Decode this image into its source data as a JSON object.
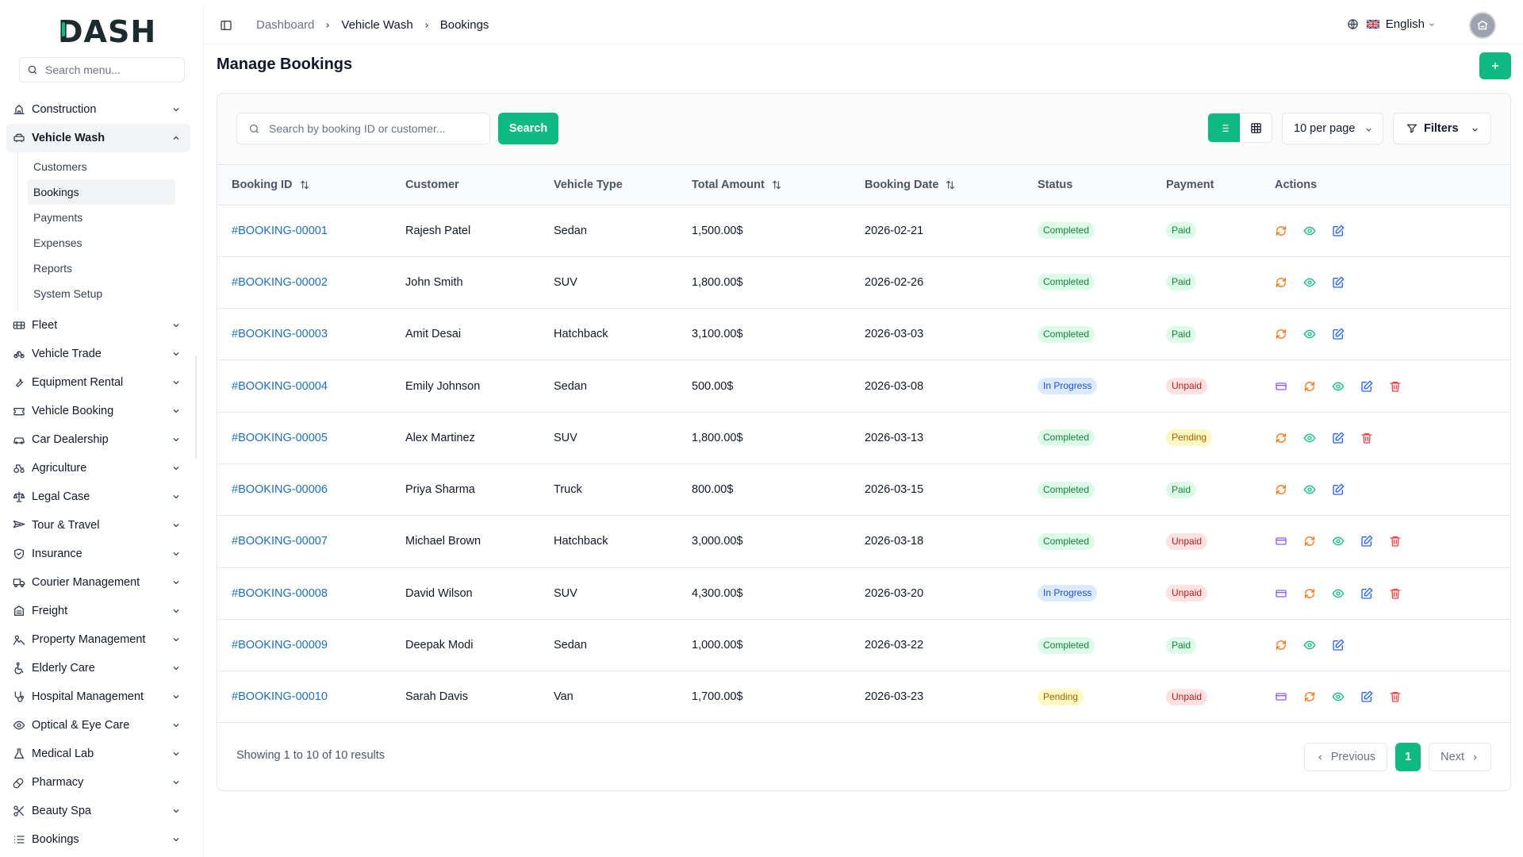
{
  "brand": {
    "logo_text": "DASH",
    "accent": "#10b981"
  },
  "sidebar": {
    "search_placeholder": "Search menu...",
    "items": [
      {
        "label": "Construction",
        "icon": "construction-icon"
      },
      {
        "label": "Vehicle Wash",
        "icon": "car-wash-icon",
        "open": true,
        "children": [
          {
            "label": "Customers"
          },
          {
            "label": "Bookings",
            "active": true
          },
          {
            "label": "Payments"
          },
          {
            "label": "Expenses"
          },
          {
            "label": "Reports"
          },
          {
            "label": "System Setup"
          }
        ]
      },
      {
        "label": "Fleet",
        "icon": "fleet-icon"
      },
      {
        "label": "Vehicle Trade",
        "icon": "bike-icon"
      },
      {
        "label": "Equipment Rental",
        "icon": "wrench-icon"
      },
      {
        "label": "Vehicle Booking",
        "icon": "ticket-icon"
      },
      {
        "label": "Car Dealership",
        "icon": "car-icon"
      },
      {
        "label": "Agriculture",
        "icon": "tractor-icon"
      },
      {
        "label": "Legal Case",
        "icon": "scale-icon"
      },
      {
        "label": "Tour & Travel",
        "icon": "plane-icon"
      },
      {
        "label": "Insurance",
        "icon": "shield-icon"
      },
      {
        "label": "Courier Management",
        "icon": "truck-icon"
      },
      {
        "label": "Freight",
        "icon": "container-icon"
      },
      {
        "label": "Property Management",
        "icon": "property-icon"
      },
      {
        "label": "Elderly Care",
        "icon": "wheelchair-icon"
      },
      {
        "label": "Hospital Management",
        "icon": "stethoscope-icon"
      },
      {
        "label": "Optical & Eye Care",
        "icon": "eye-icon"
      },
      {
        "label": "Medical Lab",
        "icon": "flask-icon"
      },
      {
        "label": "Pharmacy",
        "icon": "pill-icon"
      },
      {
        "label": "Beauty Spa",
        "icon": "scissors-icon"
      },
      {
        "label": "Bookings",
        "icon": "list-icon"
      }
    ]
  },
  "topbar": {
    "breadcrumb": [
      "Dashboard",
      "Vehicle Wash",
      "Bookings"
    ],
    "language": "English"
  },
  "page": {
    "title": "Manage Bookings",
    "add_label": "+"
  },
  "toolbar": {
    "search_placeholder": "Search by booking ID or customer...",
    "search_button": "Search",
    "per_page": "10 per page",
    "filters": "Filters"
  },
  "table": {
    "columns": [
      "Booking ID",
      "Customer",
      "Vehicle Type",
      "Total Amount",
      "Booking Date",
      "Status",
      "Payment",
      "Actions"
    ],
    "rows": [
      {
        "id": "#BOOKING-00001",
        "customer": "Rajesh Patel",
        "vehicle": "Sedan",
        "amount": "1,500.00$",
        "date": "2026-02-21",
        "status": "Completed",
        "payment": "Paid",
        "actions": [
          "refresh",
          "view",
          "edit"
        ]
      },
      {
        "id": "#BOOKING-00002",
        "customer": "John Smith",
        "vehicle": "SUV",
        "amount": "1,800.00$",
        "date": "2026-02-26",
        "status": "Completed",
        "payment": "Paid",
        "actions": [
          "refresh",
          "view",
          "edit"
        ]
      },
      {
        "id": "#BOOKING-00003",
        "customer": "Amit Desai",
        "vehicle": "Hatchback",
        "amount": "3,100.00$",
        "date": "2026-03-03",
        "status": "Completed",
        "payment": "Paid",
        "actions": [
          "refresh",
          "view",
          "edit"
        ]
      },
      {
        "id": "#BOOKING-00004",
        "customer": "Emily Johnson",
        "vehicle": "Sedan",
        "amount": "500.00$",
        "date": "2026-03-08",
        "status": "In Progress",
        "payment": "Unpaid",
        "actions": [
          "pay",
          "refresh",
          "view",
          "edit",
          "delete"
        ]
      },
      {
        "id": "#BOOKING-00005",
        "customer": "Alex Martinez",
        "vehicle": "SUV",
        "amount": "1,800.00$",
        "date": "2026-03-13",
        "status": "Completed",
        "payment": "Pending",
        "actions": [
          "refresh",
          "view",
          "edit",
          "delete"
        ]
      },
      {
        "id": "#BOOKING-00006",
        "customer": "Priya Sharma",
        "vehicle": "Truck",
        "amount": "800.00$",
        "date": "2026-03-15",
        "status": "Completed",
        "payment": "Paid",
        "actions": [
          "refresh",
          "view",
          "edit"
        ]
      },
      {
        "id": "#BOOKING-00007",
        "customer": "Michael Brown",
        "vehicle": "Hatchback",
        "amount": "3,000.00$",
        "date": "2026-03-18",
        "status": "Completed",
        "payment": "Unpaid",
        "actions": [
          "pay",
          "refresh",
          "view",
          "edit",
          "delete"
        ]
      },
      {
        "id": "#BOOKING-00008",
        "customer": "David Wilson",
        "vehicle": "SUV",
        "amount": "4,300.00$",
        "date": "2026-03-20",
        "status": "In Progress",
        "payment": "Unpaid",
        "actions": [
          "pay",
          "refresh",
          "view",
          "edit",
          "delete"
        ]
      },
      {
        "id": "#BOOKING-00009",
        "customer": "Deepak Modi",
        "vehicle": "Sedan",
        "amount": "1,000.00$",
        "date": "2026-03-22",
        "status": "Completed",
        "payment": "Paid",
        "actions": [
          "refresh",
          "view",
          "edit"
        ]
      },
      {
        "id": "#BOOKING-00010",
        "customer": "Sarah Davis",
        "vehicle": "Van",
        "amount": "1,700.00$",
        "date": "2026-03-23",
        "status": "Pending",
        "payment": "Unpaid",
        "actions": [
          "pay",
          "refresh",
          "view",
          "edit",
          "delete"
        ]
      }
    ]
  },
  "pagination": {
    "summary": "Showing 1 to 10 of 10 results",
    "previous": "Previous",
    "next": "Next",
    "current": "1"
  },
  "colors": {
    "primary": "#10b981",
    "link": "#1d6fb8",
    "refresh": "#f97316",
    "view": "#10b981",
    "edit": "#2563eb",
    "delete": "#ef4444",
    "pay": "#8b5cf6"
  }
}
